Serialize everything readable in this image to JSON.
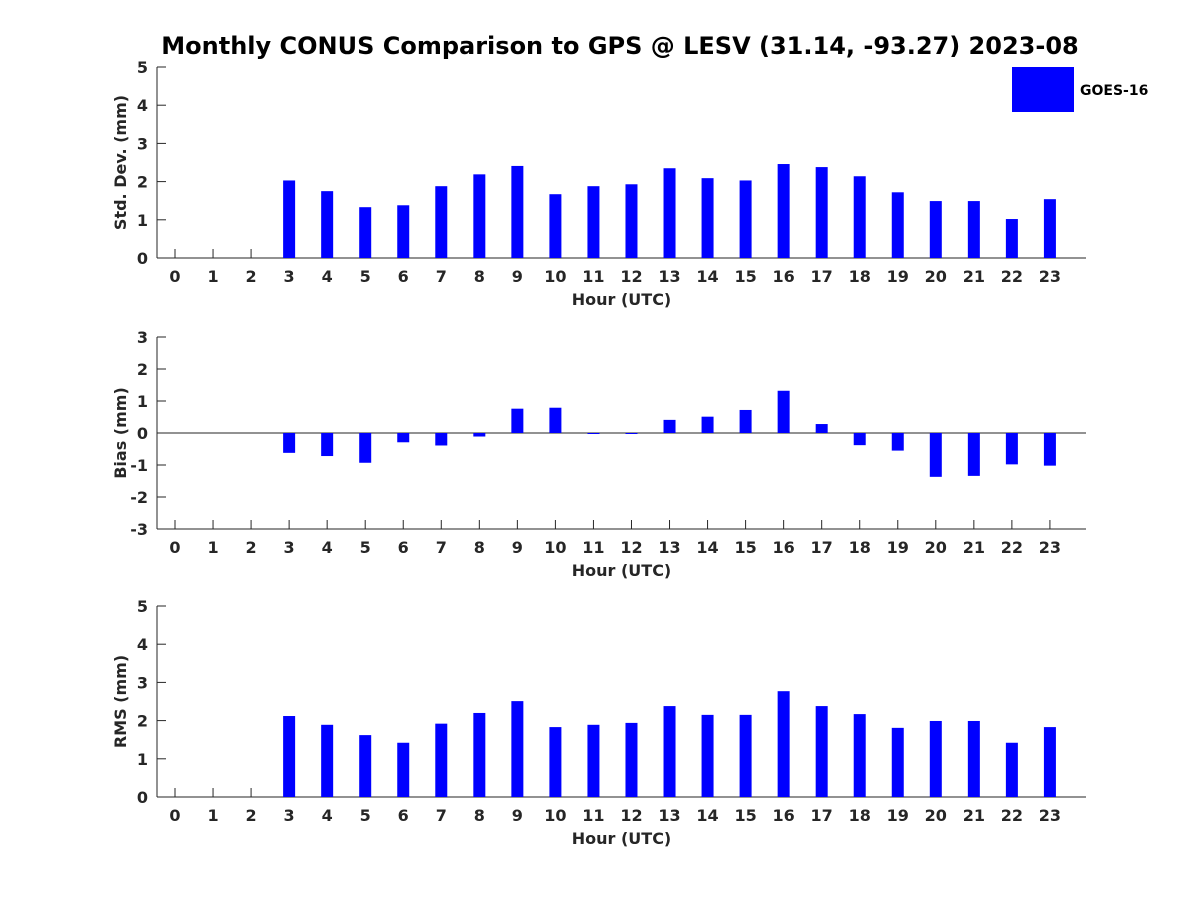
{
  "colors": {
    "bar": "#0000ff",
    "axis": "#262626",
    "background": "#ffffff"
  },
  "legend": {
    "label": "GOES-16",
    "placement": "top-right"
  },
  "chart_data": [
    {
      "type": "bar",
      "title": "Monthly CONUS Comparison to GPS @ LESV (31.14, -93.27) 2023-08",
      "xlabel": "Hour (UTC)",
      "ylabel": "Std. Dev. (mm)",
      "ylim": [
        0,
        5
      ],
      "yticks": [
        "0",
        "1",
        "2",
        "3",
        "4",
        "5"
      ],
      "categories": [
        "0",
        "1",
        "2",
        "3",
        "4",
        "5",
        "6",
        "7",
        "8",
        "9",
        "10",
        "11",
        "12",
        "13",
        "14",
        "15",
        "16",
        "17",
        "18",
        "19",
        "20",
        "21",
        "22",
        "23"
      ],
      "series": [
        {
          "name": "GOES-16",
          "values": [
            null,
            null,
            null,
            2.03,
            1.75,
            1.33,
            1.38,
            1.88,
            2.19,
            2.41,
            1.67,
            1.88,
            1.93,
            2.35,
            2.09,
            2.03,
            2.46,
            2.38,
            2.14,
            1.72,
            1.49,
            1.49,
            1.02,
            1.54
          ]
        }
      ]
    },
    {
      "type": "bar",
      "xlabel": "Hour (UTC)",
      "ylabel": "Bias (mm)",
      "ylim": [
        -3,
        3
      ],
      "yticks": [
        "-3",
        "-2",
        "-1",
        "0",
        "1",
        "2",
        "3"
      ],
      "zero_line": true,
      "categories": [
        "0",
        "1",
        "2",
        "3",
        "4",
        "5",
        "6",
        "7",
        "8",
        "9",
        "10",
        "11",
        "12",
        "13",
        "14",
        "15",
        "16",
        "17",
        "18",
        "19",
        "20",
        "21",
        "22",
        "23"
      ],
      "series": [
        {
          "name": "GOES-16",
          "values": [
            null,
            null,
            null,
            -0.62,
            -0.72,
            -0.93,
            -0.29,
            -0.39,
            -0.11,
            0.76,
            0.79,
            -0.02,
            -0.02,
            0.41,
            0.51,
            0.72,
            1.32,
            0.28,
            -0.38,
            -0.55,
            -1.37,
            -1.34,
            -0.98,
            -1.02
          ]
        }
      ]
    },
    {
      "type": "bar",
      "xlabel": "Hour (UTC)",
      "ylabel": "RMS (mm)",
      "ylim": [
        0,
        5
      ],
      "yticks": [
        "0",
        "1",
        "2",
        "3",
        "4",
        "5"
      ],
      "categories": [
        "0",
        "1",
        "2",
        "3",
        "4",
        "5",
        "6",
        "7",
        "8",
        "9",
        "10",
        "11",
        "12",
        "13",
        "14",
        "15",
        "16",
        "17",
        "18",
        "19",
        "20",
        "21",
        "22",
        "23"
      ],
      "series": [
        {
          "name": "GOES-16",
          "values": [
            null,
            null,
            null,
            2.12,
            1.89,
            1.62,
            1.42,
            1.92,
            2.2,
            2.51,
            1.83,
            1.89,
            1.94,
            2.38,
            2.15,
            2.15,
            2.77,
            2.38,
            2.17,
            1.81,
            1.99,
            1.99,
            1.42,
            1.83
          ]
        }
      ]
    }
  ]
}
